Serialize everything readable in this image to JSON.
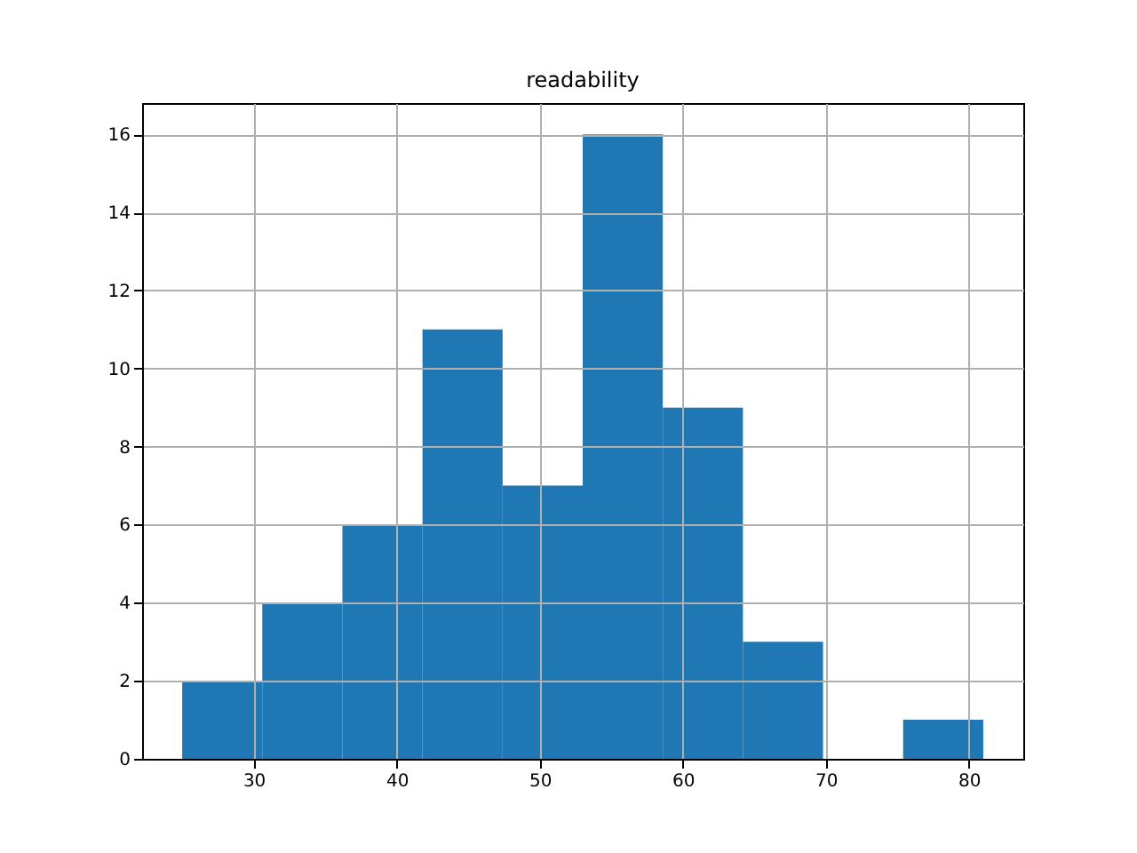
{
  "chart_data": {
    "type": "histogram",
    "title": "readability",
    "bins": [
      25,
      30.6,
      36.2,
      41.8,
      47.4,
      53,
      58.6,
      64.2,
      69.8,
      75.4,
      81
    ],
    "values": [
      2,
      4,
      6,
      11,
      7,
      16,
      9,
      3,
      0,
      1
    ],
    "color": "#1f77b4",
    "xlim": [
      22.2,
      83.8
    ],
    "xticks": [
      30,
      40,
      50,
      60,
      70,
      80
    ],
    "ylim": [
      0,
      16.8
    ],
    "yticks": [
      0,
      2,
      4,
      6,
      8,
      10,
      12,
      14,
      16
    ],
    "grid": true
  }
}
